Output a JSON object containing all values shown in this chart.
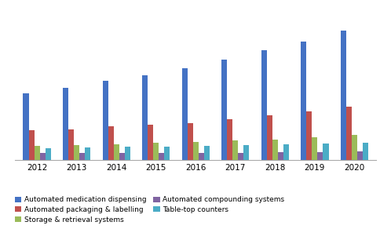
{
  "years": [
    2012,
    2013,
    2014,
    2015,
    2016,
    2017,
    2018,
    2019,
    2020
  ],
  "series": {
    "Automated medication dispensing": [
      1900,
      2050,
      2250,
      2400,
      2600,
      2850,
      3100,
      3350,
      3650
    ],
    "Automated packaging & labelling": [
      850,
      880,
      970,
      1000,
      1050,
      1150,
      1280,
      1380,
      1520
    ],
    "Storage & retrieval systems": [
      400,
      430,
      460,
      500,
      520,
      560,
      590,
      650,
      710
    ],
    "Automated compounding systems": [
      200,
      200,
      210,
      210,
      210,
      215,
      230,
      240,
      250
    ],
    "Table-top counters": [
      350,
      370,
      380,
      390,
      400,
      420,
      450,
      470,
      490
    ]
  },
  "colors": {
    "Automated medication dispensing": "#4472C4",
    "Automated packaging & labelling": "#C0504D",
    "Storage & retrieval systems": "#9BBB59",
    "Automated compounding systems": "#8064A2",
    "Table-top counters": "#4BACC6"
  },
  "legend_order": [
    "Automated medication dispensing",
    "Automated packaging & labelling",
    "Storage & retrieval systems",
    "Automated compounding systems",
    "Table-top counters"
  ],
  "background_color": "#FFFFFF",
  "ylim": [
    0,
    4200
  ],
  "bar_width": 0.14
}
